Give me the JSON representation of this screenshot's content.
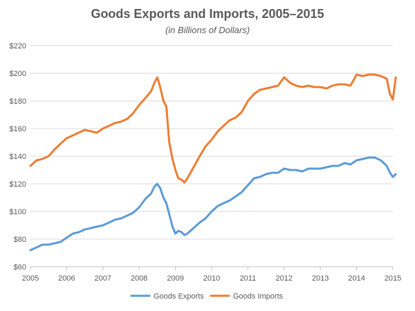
{
  "chart_data": {
    "type": "line",
    "title": "Goods Exports and Imports, 2005–2015",
    "subtitle": "(in Billions of Dollars)",
    "xlabel": "",
    "ylabel": "",
    "ylim": [
      60,
      220
    ],
    "xlim": [
      2005,
      2015
    ],
    "y_ticks": [
      60,
      80,
      100,
      120,
      140,
      160,
      180,
      200,
      220
    ],
    "y_tick_labels": [
      "$60",
      "$80",
      "$100",
      "$120",
      "$140",
      "$160",
      "$180",
      "$200",
      "$220"
    ],
    "x_ticks": [
      2005,
      2006,
      2007,
      2008,
      2009,
      2010,
      2011,
      2012,
      2013,
      2014,
      2015
    ],
    "x_tick_labels": [
      "2005",
      "2006",
      "2007",
      "2008",
      "2009",
      "2010",
      "2011",
      "2012",
      "2013",
      "2014",
      "2015"
    ],
    "grid": "horizontal",
    "legend_position": "bottom",
    "series": [
      {
        "name": "Goods Exports",
        "color": "#5b9bd5",
        "points": [
          [
            2005.0,
            72
          ],
          [
            2005.17,
            74
          ],
          [
            2005.33,
            76
          ],
          [
            2005.5,
            76
          ],
          [
            2005.67,
            77
          ],
          [
            2005.83,
            78
          ],
          [
            2006.0,
            81
          ],
          [
            2006.17,
            84
          ],
          [
            2006.33,
            85
          ],
          [
            2006.5,
            87
          ],
          [
            2006.67,
            88
          ],
          [
            2006.83,
            89
          ],
          [
            2007.0,
            90
          ],
          [
            2007.17,
            92
          ],
          [
            2007.33,
            94
          ],
          [
            2007.5,
            95
          ],
          [
            2007.67,
            97
          ],
          [
            2007.83,
            99
          ],
          [
            2008.0,
            103
          ],
          [
            2008.17,
            109
          ],
          [
            2008.33,
            113
          ],
          [
            2008.42,
            118
          ],
          [
            2008.5,
            120
          ],
          [
            2008.58,
            117
          ],
          [
            2008.67,
            110
          ],
          [
            2008.75,
            106
          ],
          [
            2008.83,
            98
          ],
          [
            2008.92,
            89
          ],
          [
            2009.0,
            84
          ],
          [
            2009.08,
            86
          ],
          [
            2009.17,
            85
          ],
          [
            2009.25,
            83
          ],
          [
            2009.33,
            84
          ],
          [
            2009.5,
            88
          ],
          [
            2009.67,
            92
          ],
          [
            2009.83,
            95
          ],
          [
            2010.0,
            100
          ],
          [
            2010.17,
            104
          ],
          [
            2010.33,
            106
          ],
          [
            2010.5,
            108
          ],
          [
            2010.67,
            111
          ],
          [
            2010.83,
            114
          ],
          [
            2011.0,
            119
          ],
          [
            2011.17,
            124
          ],
          [
            2011.33,
            125
          ],
          [
            2011.5,
            127
          ],
          [
            2011.67,
            128
          ],
          [
            2011.83,
            128
          ],
          [
            2012.0,
            131
          ],
          [
            2012.17,
            130
          ],
          [
            2012.33,
            130
          ],
          [
            2012.5,
            129
          ],
          [
            2012.67,
            131
          ],
          [
            2012.83,
            131
          ],
          [
            2013.0,
            131
          ],
          [
            2013.17,
            132
          ],
          [
            2013.33,
            133
          ],
          [
            2013.5,
            133
          ],
          [
            2013.67,
            135
          ],
          [
            2013.83,
            134
          ],
          [
            2014.0,
            137
          ],
          [
            2014.17,
            138
          ],
          [
            2014.33,
            139
          ],
          [
            2014.5,
            139
          ],
          [
            2014.67,
            137
          ],
          [
            2014.83,
            133
          ],
          [
            2014.92,
            128
          ],
          [
            2015.0,
            125
          ],
          [
            2015.08,
            127
          ]
        ]
      },
      {
        "name": "Goods Imports",
        "color": "#ed7d31",
        "points": [
          [
            2005.0,
            133
          ],
          [
            2005.17,
            137
          ],
          [
            2005.33,
            138
          ],
          [
            2005.5,
            140
          ],
          [
            2005.67,
            145
          ],
          [
            2005.83,
            149
          ],
          [
            2006.0,
            153
          ],
          [
            2006.17,
            155
          ],
          [
            2006.33,
            157
          ],
          [
            2006.5,
            159
          ],
          [
            2006.67,
            158
          ],
          [
            2006.83,
            157
          ],
          [
            2007.0,
            160
          ],
          [
            2007.17,
            162
          ],
          [
            2007.33,
            164
          ],
          [
            2007.5,
            165
          ],
          [
            2007.67,
            167
          ],
          [
            2007.83,
            171
          ],
          [
            2008.0,
            177
          ],
          [
            2008.17,
            182
          ],
          [
            2008.33,
            187
          ],
          [
            2008.42,
            193
          ],
          [
            2008.5,
            197
          ],
          [
            2008.58,
            190
          ],
          [
            2008.67,
            180
          ],
          [
            2008.75,
            176
          ],
          [
            2008.83,
            150
          ],
          [
            2008.92,
            138
          ],
          [
            2009.0,
            130
          ],
          [
            2009.08,
            124
          ],
          [
            2009.17,
            123
          ],
          [
            2009.25,
            121
          ],
          [
            2009.33,
            124
          ],
          [
            2009.5,
            132
          ],
          [
            2009.67,
            140
          ],
          [
            2009.83,
            147
          ],
          [
            2010.0,
            152
          ],
          [
            2010.17,
            158
          ],
          [
            2010.33,
            162
          ],
          [
            2010.5,
            166
          ],
          [
            2010.67,
            168
          ],
          [
            2010.83,
            172
          ],
          [
            2011.0,
            180
          ],
          [
            2011.17,
            185
          ],
          [
            2011.33,
            188
          ],
          [
            2011.5,
            189
          ],
          [
            2011.67,
            190
          ],
          [
            2011.83,
            191
          ],
          [
            2012.0,
            197
          ],
          [
            2012.17,
            193
          ],
          [
            2012.33,
            191
          ],
          [
            2012.5,
            190
          ],
          [
            2012.67,
            191
          ],
          [
            2012.83,
            190
          ],
          [
            2013.0,
            190
          ],
          [
            2013.17,
            189
          ],
          [
            2013.33,
            191
          ],
          [
            2013.5,
            192
          ],
          [
            2013.67,
            192
          ],
          [
            2013.83,
            191
          ],
          [
            2014.0,
            199
          ],
          [
            2014.17,
            198
          ],
          [
            2014.33,
            199
          ],
          [
            2014.5,
            199
          ],
          [
            2014.67,
            198
          ],
          [
            2014.83,
            196
          ],
          [
            2014.92,
            185
          ],
          [
            2015.0,
            181
          ],
          [
            2015.08,
            197
          ]
        ]
      }
    ]
  }
}
